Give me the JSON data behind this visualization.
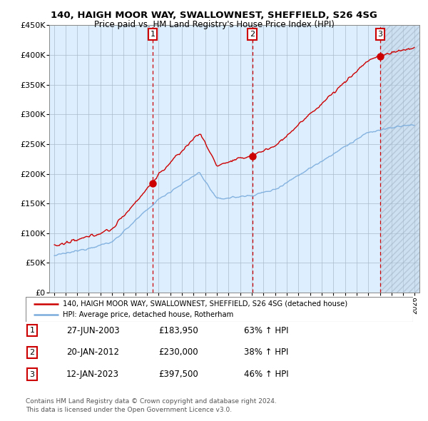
{
  "title_line1": "140, HAIGH MOOR WAY, SWALLOWNEST, SHEFFIELD, S26 4SG",
  "title_line2": "Price paid vs. HM Land Registry's House Price Index (HPI)",
  "ylim": [
    0,
    450000
  ],
  "yticks": [
    0,
    50000,
    100000,
    150000,
    200000,
    250000,
    300000,
    350000,
    400000,
    450000
  ],
  "ytick_labels": [
    "£0",
    "£50K",
    "£100K",
    "£150K",
    "£200K",
    "£250K",
    "£300K",
    "£350K",
    "£400K",
    "£450K"
  ],
  "sale_years": [
    2003.49,
    2012.05,
    2023.04
  ],
  "sale_prices": [
    183950,
    230000,
    397500
  ],
  "sale_labels": [
    "1",
    "2",
    "3"
  ],
  "sale_info": [
    [
      "1",
      "27-JUN-2003",
      "£183,950",
      "63% ↑ HPI"
    ],
    [
      "2",
      "20-JAN-2012",
      "£230,000",
      "38% ↑ HPI"
    ],
    [
      "3",
      "12-JAN-2023",
      "£397,500",
      "46% ↑ HPI"
    ]
  ],
  "legend_line1": "140, HAIGH MOOR WAY, SWALLOWNEST, SHEFFIELD, S26 4SG (detached house)",
  "legend_line2": "HPI: Average price, detached house, Rotherham",
  "red_color": "#cc0000",
  "blue_color": "#7aacdc",
  "plot_bg": "#ddeeff",
  "grid_color": "#aabbcc",
  "future_start": 2023.04,
  "xmin": 1994.6,
  "xmax": 2026.4,
  "footer_line1": "Contains HM Land Registry data © Crown copyright and database right 2024.",
  "footer_line2": "This data is licensed under the Open Government Licence v3.0."
}
